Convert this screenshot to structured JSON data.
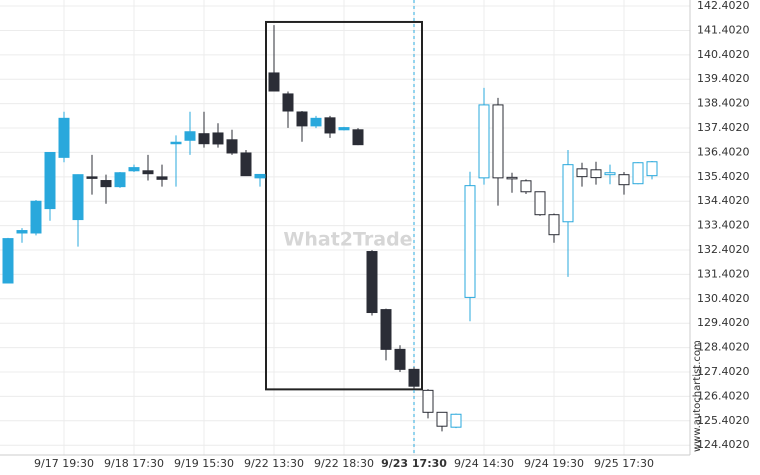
{
  "chart_data": {
    "type": "candlestick",
    "watermark": "What2Trade",
    "source": "www.autochartist.com",
    "categories": [
      null,
      null,
      null,
      null,
      "9/17 19:30",
      null,
      null,
      null,
      null,
      "9/18 17:30",
      null,
      null,
      null,
      null,
      "9/19 15:30",
      null,
      null,
      null,
      null,
      "9/22 13:30",
      null,
      null,
      null,
      null,
      "9/22 18:30",
      null,
      null,
      null,
      null,
      "9/23 17:30",
      null,
      null,
      null,
      null,
      "9/24 14:30",
      null,
      null,
      null,
      null,
      "9/24 19:30",
      null,
      null,
      null,
      null,
      "9/25 17:30",
      null,
      null
    ],
    "open": [
      131.05,
      133.1,
      133.1,
      134.1,
      136.2,
      133.65,
      135.4,
      135.25,
      135.0,
      135.65,
      135.65,
      135.4,
      136.8,
      136.9,
      137.17,
      137.2,
      136.92,
      136.38,
      135.36,
      139.66,
      138.8,
      138.06,
      137.49,
      137.82,
      137.33,
      137.33,
      132.34,
      129.96,
      128.33,
      127.51,
      126.65,
      125.75,
      125.14,
      130.46,
      135.36,
      138.35,
      135.38,
      135.24,
      134.79,
      133.85,
      133.56,
      135.73,
      135.69,
      135.49,
      135.49,
      135.12,
      135.45
    ],
    "high": [
      132.9,
      133.3,
      134.45,
      136.4,
      138.07,
      135.5,
      136.3,
      135.49,
      135.6,
      135.9,
      136.3,
      135.9,
      137.1,
      138.07,
      138.07,
      137.6,
      137.33,
      136.5,
      135.5,
      141.62,
      138.9,
      138.1,
      137.9,
      137.9,
      137.45,
      137.4,
      132.4,
      130.0,
      128.5,
      127.6,
      126.7,
      125.75,
      125.7,
      135.61,
      139.05,
      138.64,
      135.57,
      135.3,
      134.8,
      133.9,
      136.5,
      135.98,
      136.02,
      135.9,
      135.6,
      136.0,
      136.05
    ],
    "low": [
      131.05,
      132.7,
      133.0,
      133.6,
      136.0,
      132.54,
      134.67,
      134.3,
      134.95,
      135.6,
      135.25,
      135.0,
      135.0,
      136.3,
      136.6,
      136.6,
      136.3,
      135.45,
      135.0,
      138.9,
      137.41,
      136.84,
      137.4,
      137.0,
      137.3,
      136.7,
      129.72,
      127.88,
      127.4,
      126.7,
      125.5,
      124.97,
      125.1,
      129.48,
      135.08,
      134.22,
      134.75,
      134.7,
      133.8,
      132.7,
      131.3,
      135.0,
      135.08,
      135.1,
      134.67,
      135.1,
      135.3
    ],
    "close": [
      132.87,
      133.2,
      134.4,
      136.4,
      137.8,
      135.49,
      135.35,
      135.0,
      135.57,
      135.78,
      135.53,
      135.3,
      136.82,
      137.25,
      136.76,
      136.75,
      136.38,
      135.45,
      135.5,
      138.92,
      138.1,
      137.49,
      137.8,
      137.2,
      137.42,
      136.72,
      129.84,
      128.33,
      127.51,
      126.82,
      125.75,
      125.18,
      125.67,
      135.04,
      138.35,
      135.36,
      135.36,
      134.79,
      133.85,
      133.03,
      135.9,
      135.41,
      135.37,
      135.57,
      135.08,
      135.98,
      136.02
    ],
    "up_color": "#29a8dc",
    "down_color": "#2b2d36",
    "pattern": {
      "start": 19,
      "end": 29,
      "high": 141.75,
      "low": 126.69
    },
    "ylim": [
      124.0,
      142.65
    ],
    "yticks": [
      {
        "value": 142.402,
        "label": "142.4020"
      },
      {
        "value": 141.402,
        "label": "141.4020"
      },
      {
        "value": 140.402,
        "label": "140.4020"
      },
      {
        "value": 139.402,
        "label": "139.4020"
      },
      {
        "value": 138.402,
        "label": "138.4020"
      },
      {
        "value": 137.402,
        "label": "137.4020"
      },
      {
        "value": 136.402,
        "label": "136.4020"
      },
      {
        "value": 135.402,
        "label": "135.4020"
      },
      {
        "value": 134.402,
        "label": "134.4020"
      },
      {
        "value": 133.402,
        "label": "133.4020"
      },
      {
        "value": 132.402,
        "label": "132.4020"
      },
      {
        "value": 131.402,
        "label": "131.4020"
      },
      {
        "value": 130.402,
        "label": "130.4020"
      },
      {
        "value": 129.402,
        "label": "129.4020"
      },
      {
        "value": 128.402,
        "label": "128.4020"
      },
      {
        "value": 127.402,
        "label": "127.4020"
      },
      {
        "value": 126.402,
        "label": "126.4020"
      },
      {
        "value": 125.402,
        "label": "125.4020"
      },
      {
        "value": 124.402,
        "label": "124.4020"
      }
    ],
    "grid": true
  }
}
